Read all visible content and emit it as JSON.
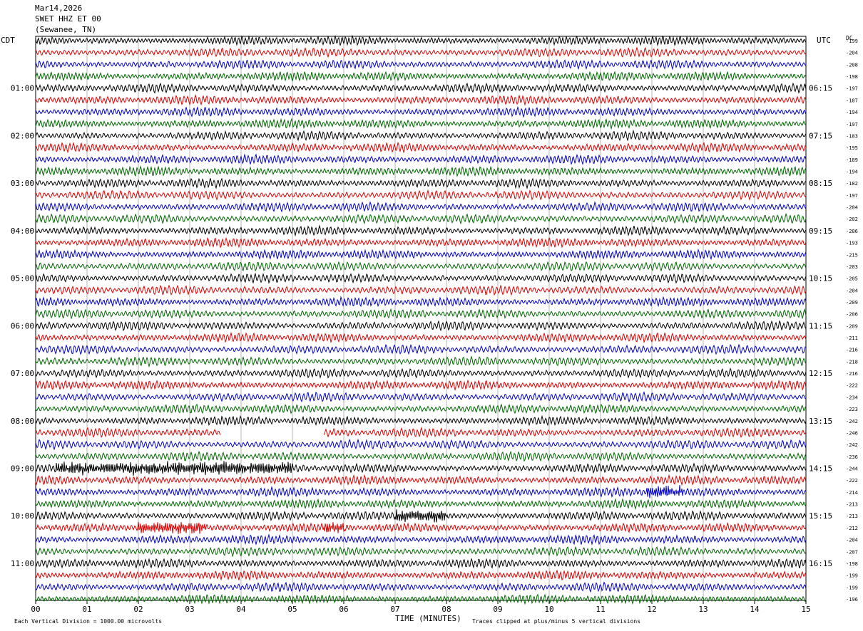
{
  "header": {
    "date": "Mar14,2026",
    "station": "SWET HHZ ET 00",
    "location": "(Sewanee, TN)"
  },
  "labels": {
    "left_tz": "CDT",
    "right_tz": "UTC",
    "dc": "DC",
    "xlabel": "TIME (MINUTES)",
    "scale_note": "Each Vertical Division = 1000.00 microvolts",
    "clip_note": "Traces clipped at plus/minus 5 vertical divisions"
  },
  "chart_data": {
    "type": "line",
    "title": "",
    "xlabel": "TIME (MINUTES)",
    "ylabel": "",
    "xlim": [
      0,
      15
    ],
    "x_ticks": [
      "00",
      "01",
      "02",
      "03",
      "04",
      "05",
      "06",
      "07",
      "08",
      "09",
      "10",
      "11",
      "12",
      "13",
      "14",
      "15"
    ],
    "trace_count": 48,
    "trace_colors": [
      "#000000",
      "#dd0000",
      "#0000cc",
      "#006600"
    ],
    "left_hour_labels": [
      "01:00",
      "02:00",
      "03:00",
      "04:00",
      "05:00",
      "06:00",
      "07:00",
      "08:00",
      "09:00",
      "10:00",
      "11:00"
    ],
    "right_hour_labels": [
      "06:15",
      "07:15",
      "08:15",
      "09:15",
      "10:15",
      "11:15",
      "12:15",
      "13:15",
      "14:15",
      "15:15",
      "16:15"
    ],
    "dc_values": [
      199,
      204,
      208,
      198,
      197,
      187,
      194,
      197,
      183,
      195,
      189,
      194,
      182,
      197,
      204,
      202,
      206,
      193,
      215,
      203,
      205,
      204,
      209,
      206,
      209,
      211,
      216,
      218,
      216,
      222,
      234,
      223,
      242,
      246,
      242,
      236,
      244,
      222,
      214,
      213,
      213,
      212,
      204,
      207,
      198,
      199,
      199,
      196
    ],
    "events": [
      {
        "trace": 33,
        "x0": 3.6,
        "x1": 5.6,
        "kind": "gap"
      },
      {
        "trace": 36,
        "x0": 0.4,
        "x1": 5.0,
        "kind": "burst"
      },
      {
        "trace": 38,
        "x0": 11.9,
        "x1": 12.6,
        "kind": "burst"
      },
      {
        "trace": 40,
        "x0": 7.0,
        "x1": 8.0,
        "kind": "burst"
      },
      {
        "trace": 41,
        "x0": 2.0,
        "x1": 3.3,
        "kind": "burst"
      },
      {
        "trace": 41,
        "x0": 5.6,
        "x1": 6.0,
        "kind": "burst"
      }
    ]
  }
}
